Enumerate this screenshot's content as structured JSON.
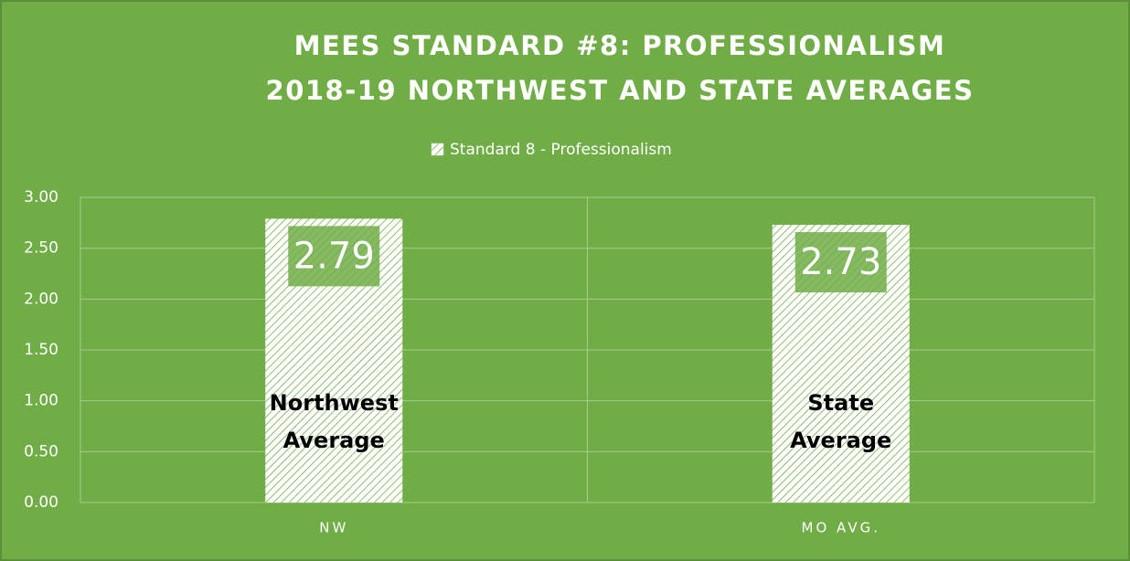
{
  "chart_data": {
    "type": "bar",
    "title": [
      "MEES STANDARD #8: PROFESSIONALISM",
      "2018-19 NORTHWEST AND STATE AVERAGES"
    ],
    "categories": [
      "NW",
      "MO AVG."
    ],
    "series": [
      {
        "name": "Standard 8 - Professionalism",
        "color": "#ffffff",
        "pattern": "hatch",
        "values": [
          2.79,
          2.73
        ]
      }
    ],
    "annotations": [
      [
        "Northwest",
        "Average"
      ],
      [
        "State",
        "Average"
      ]
    ],
    "ylim": [
      0,
      3
    ],
    "yticks": [
      {
        "value": 0,
        "label": "0.00"
      },
      {
        "value": 0.5,
        "label": "0.50"
      },
      {
        "value": 1,
        "label": "1.00"
      },
      {
        "value": 1.5,
        "label": "1.50"
      },
      {
        "value": 2,
        "label": "2.00"
      },
      {
        "value": 2.5,
        "label": "2.50"
      },
      {
        "value": 3,
        "label": "3.00"
      }
    ],
    "grid": true,
    "legend": "top",
    "background": "#70ad47"
  }
}
